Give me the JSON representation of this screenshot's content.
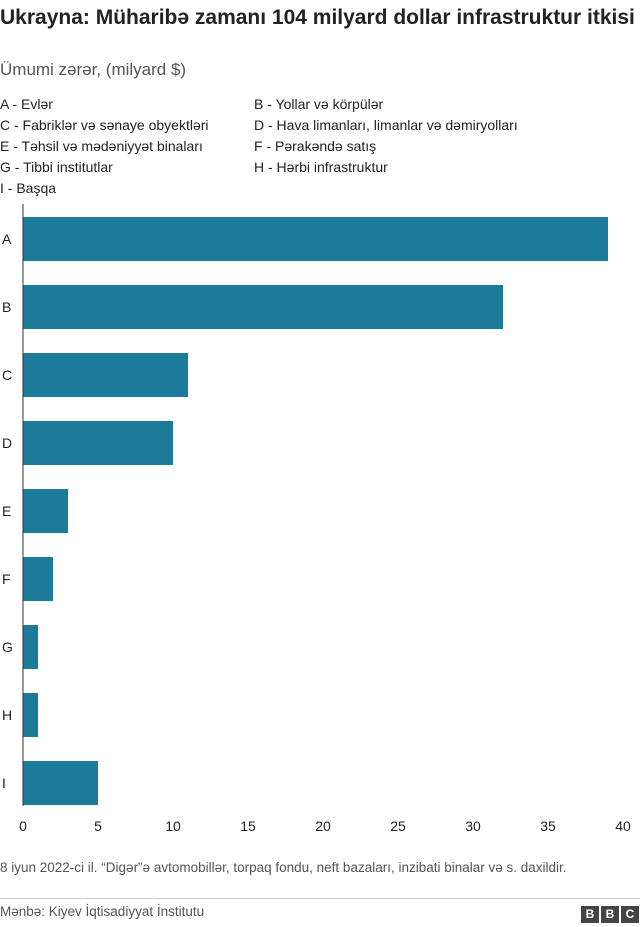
{
  "chart_data": {
    "type": "bar",
    "orientation": "horizontal",
    "title": "Ukrayna: Müharibə zamanı 104 milyard dollar infrastruktur itkisi",
    "subtitle": "Ümumi zərər, (milyard $)",
    "categories": [
      "A",
      "B",
      "C",
      "D",
      "E",
      "F",
      "G",
      "H",
      "I"
    ],
    "values": [
      39,
      32,
      11,
      10,
      3,
      2,
      1,
      1,
      5
    ],
    "xlim": [
      0,
      40
    ],
    "xticks": [
      0,
      5,
      10,
      15,
      20,
      25,
      30,
      35,
      40
    ],
    "xlabel": "",
    "ylabel": "",
    "grid": false,
    "bar_color": "#1b7b99",
    "legend": [
      "A - Evlər",
      "B - Yollar və körpülər",
      "C - Fabriklər və sənaye obyektləri",
      "D - Hava limanları, limanlar və dəmiryolları",
      "E - Təhsil və mədəniyyət binaları",
      "F - Pərakəndə satış",
      "G - Tibbi institutlar",
      "H - Hərbi infrastruktur",
      "I - Başqa"
    ]
  },
  "footnote": "8 iyun 2022-ci il. “Digər”ə avtomobillər, torpaq fondu, neft bazaları, inzibati binalar və s. daxildir.",
  "source": "Mənbə: Kiyev İqtisadiyyat İnstitutu",
  "logo": [
    "B",
    "B",
    "C"
  ]
}
